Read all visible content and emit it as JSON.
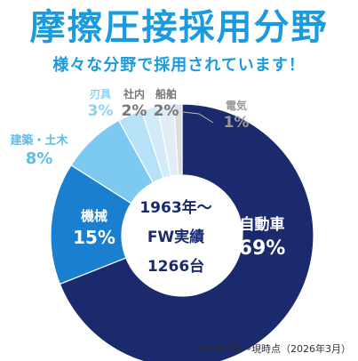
{
  "header": {
    "title": "摩擦圧接採用分野",
    "subtitle": "様々な分野で採用されています！"
  },
  "center": {
    "line1": "1963年〜",
    "line2": "FW実績",
    "line3": "1266台"
  },
  "footnote": "※1963年〜現時点（2026年3月）",
  "chart_data": {
    "type": "pie",
    "subtype": "donut",
    "title": "摩擦圧接採用分野",
    "unit": "%",
    "slices": [
      {
        "label": "自動車",
        "value": 69,
        "display": "69%",
        "color": "#1a2a6c"
      },
      {
        "label": "機械",
        "value": 15,
        "display": "15%",
        "color": "#1a7fcf"
      },
      {
        "label": "建築・土木",
        "value": 8,
        "display": "8%",
        "color": "#7ccaf2"
      },
      {
        "label": "刃具",
        "value": 3,
        "display": "3%",
        "color": "#b7e1f7"
      },
      {
        "label": "社内",
        "value": 2,
        "display": "2%",
        "color": "#d3ebf8"
      },
      {
        "label": "船舶",
        "value": 2,
        "display": "2%",
        "color": "#e2ecf4"
      },
      {
        "label": "電気",
        "value": 1,
        "display": "1%",
        "color": "#d8dde4"
      }
    ]
  }
}
